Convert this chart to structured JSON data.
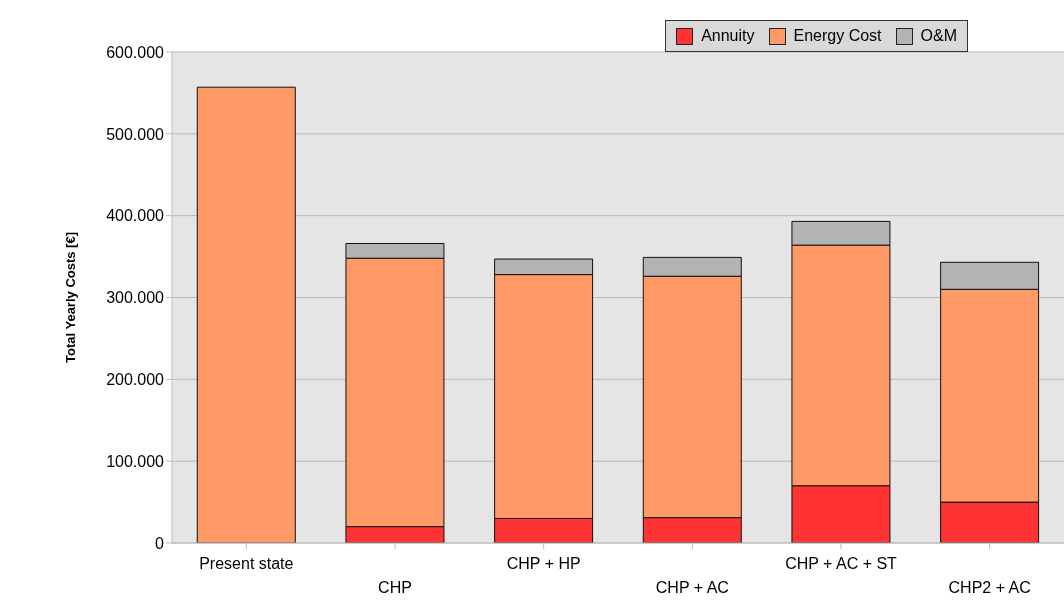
{
  "chart_data": {
    "type": "bar",
    "stacked": true,
    "ylabel": "Total Yearly Costs [€]",
    "categories": [
      "Present state",
      "CHP",
      "CHP + HP",
      "CHP + AC",
      "CHP + AC + ST",
      "CHP2 + AC"
    ],
    "series": [
      {
        "name": "Annuity",
        "color": "#ff3333",
        "values": [
          0,
          20000,
          30000,
          31000,
          70000,
          50000
        ]
      },
      {
        "name": "Energy Cost",
        "color": "#ff9966",
        "values": [
          557000,
          328000,
          298000,
          295000,
          294000,
          260000
        ]
      },
      {
        "name": "O&M",
        "color": "#b3b3b3",
        "values": [
          0,
          18000,
          19000,
          23000,
          29000,
          33000
        ]
      }
    ],
    "ylim": [
      0,
      600000
    ],
    "yticks": [
      {
        "value": 0,
        "label": "0"
      },
      {
        "value": 100000,
        "label": "100.000"
      },
      {
        "value": 200000,
        "label": "200.000"
      },
      {
        "value": 300000,
        "label": "300.000"
      },
      {
        "value": 400000,
        "label": "400.000"
      },
      {
        "value": 500000,
        "label": "500.000"
      },
      {
        "value": 600000,
        "label": "600.000"
      }
    ],
    "grid": "y",
    "legend": "top right"
  }
}
